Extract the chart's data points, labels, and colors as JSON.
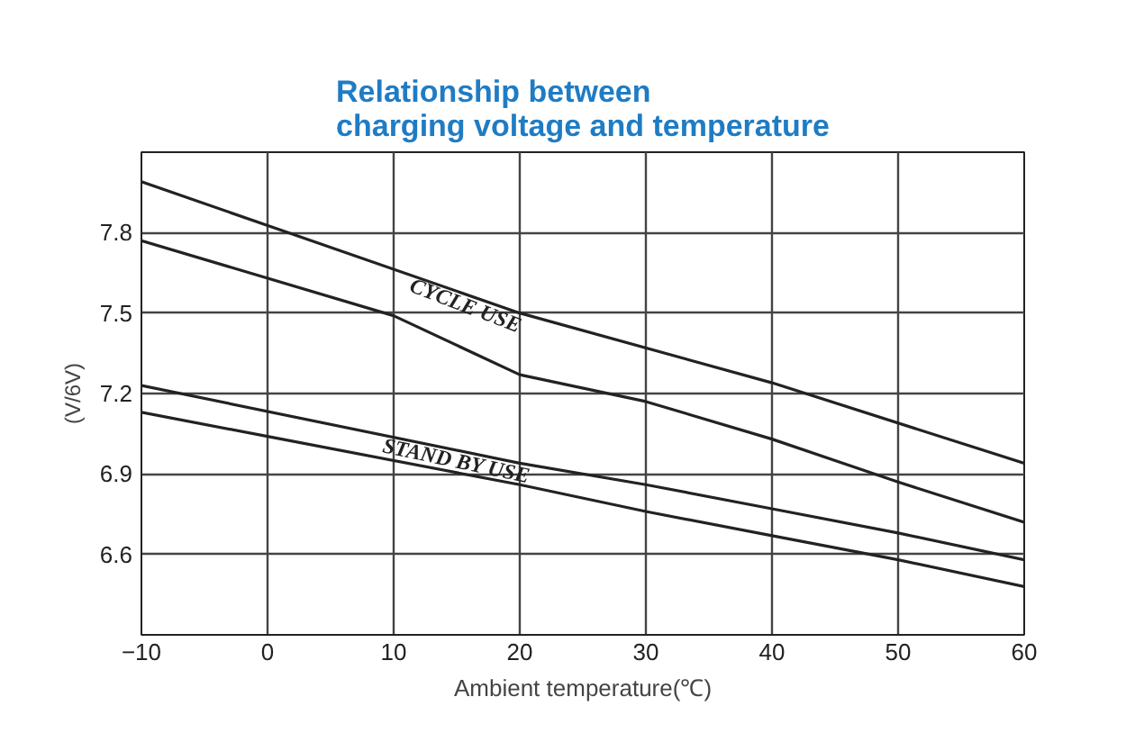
{
  "chart_data": {
    "type": "line",
    "title": "Relationship between\ncharging voltage and temperature",
    "xlabel": "Ambient temperature(℃)",
    "ylabel": "(V/6V)",
    "xlim": [
      -10,
      60
    ],
    "xticks": [
      -10,
      0,
      10,
      20,
      30,
      40,
      50,
      60
    ],
    "ylim": [
      6.3,
      8.1
    ],
    "yticks": [
      6.6,
      6.9,
      7.2,
      7.5,
      7.8
    ],
    "grid": true,
    "marker": "none",
    "line_style": "solid",
    "series": [
      {
        "color": "#222222",
        "x": [
          -10,
          20,
          40,
          60
        ],
        "values": [
          7.99,
          7.5,
          7.24,
          6.94
        ]
      },
      {
        "color": "#222222",
        "x": [
          -10,
          10,
          20,
          30,
          40,
          50,
          60
        ],
        "values": [
          7.77,
          7.49,
          7.27,
          7.17,
          7.03,
          6.87,
          6.72
        ]
      },
      {
        "color": "#222222",
        "x": [
          -10,
          20,
          30,
          40,
          50,
          60
        ],
        "values": [
          7.23,
          6.94,
          6.86,
          6.77,
          6.68,
          6.58
        ]
      },
      {
        "color": "#222222",
        "x": [
          -10,
          0,
          20,
          30,
          40,
          50,
          60
        ],
        "values": [
          7.13,
          7.04,
          6.86,
          6.76,
          6.67,
          6.58,
          6.48
        ]
      }
    ],
    "annotations": [
      {
        "text": "CYCLE USE",
        "x": 15.7,
        "y": 7.53
      },
      {
        "text": "STAND BY USE",
        "x": 15,
        "y": 6.95
      }
    ]
  }
}
